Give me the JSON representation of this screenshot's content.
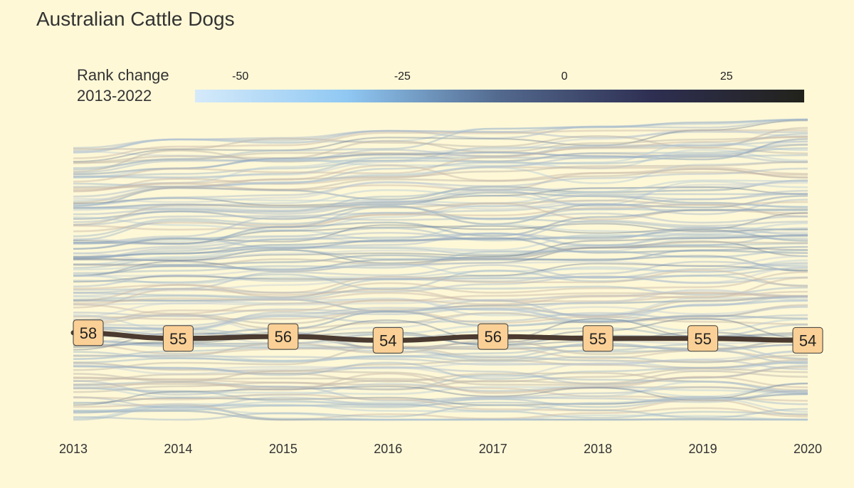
{
  "chart_data": {
    "type": "line",
    "title": "Australian Cattle Dogs",
    "x": [
      "2013",
      "2014",
      "2015",
      "2016",
      "2017",
      "2018",
      "2019",
      "2020"
    ],
    "series": [
      {
        "name": "Australian Cattle Dogs",
        "rank": [
          58,
          55,
          56,
          54,
          56,
          55,
          55,
          54
        ]
      }
    ],
    "colorbar": {
      "title": "Rank change\n2013-2022",
      "title_lines": [
        "Rank change",
        "2013-2022"
      ],
      "ticks": [
        -50,
        -25,
        0,
        25
      ],
      "tick_labels": [
        "-50",
        "-25",
        "0",
        "25"
      ],
      "range": [
        -57,
        37
      ],
      "colors": [
        "#d5eafa",
        "#8fc8f3",
        "#53698e",
        "#2e2f52",
        "#22221b"
      ]
    },
    "background_color": "#fef8d7",
    "highlight_line_color": "#4a3a30",
    "label_fill_color": "#fbd096",
    "background_bundle": "other breeds' rank trajectories (faint lines)"
  }
}
